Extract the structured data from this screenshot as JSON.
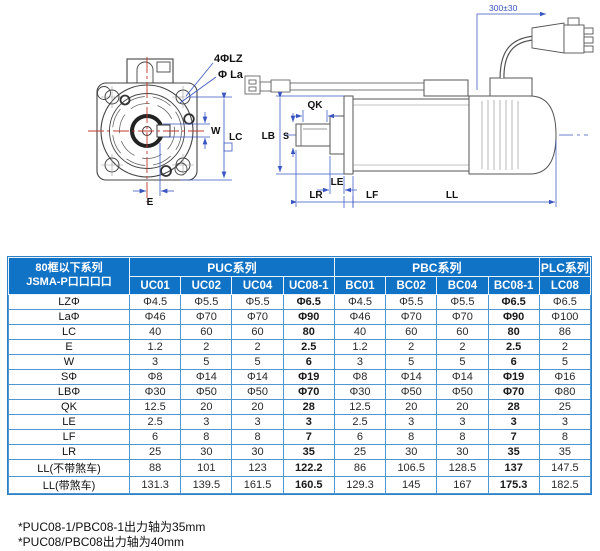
{
  "drawing": {
    "labels": {
      "lz": "4ΦLZ",
      "la": "Φ La",
      "w": "W",
      "lc": "LC",
      "e": "E",
      "cable": "300±30",
      "qk": "QK",
      "s": "S",
      "lb": "LB",
      "le": "LE",
      "lr": "LR",
      "lf": "LF",
      "ll": "LL"
    }
  },
  "table": {
    "corner_header_line1": "80框以下系列",
    "corner_header_line2": "JSMA-P口口口口",
    "groups": [
      {
        "label": "PUC系列"
      },
      {
        "label": "PBC系列"
      },
      {
        "label": "PLC系列"
      }
    ],
    "columns": [
      "UC01",
      "UC02",
      "UC04",
      "UC08-1",
      "BC01",
      "BC02",
      "BC04",
      "BC08-1",
      "LC08"
    ],
    "rows": [
      {
        "label": "LZΦ",
        "values": [
          "Φ4.5",
          "Φ5.5",
          "Φ5.5",
          "Φ6.5",
          "Φ4.5",
          "Φ5.5",
          "Φ5.5",
          "Φ6.5",
          "Φ6.5"
        ]
      },
      {
        "label": "LaΦ",
        "values": [
          "Φ46",
          "Φ70",
          "Φ70",
          "Φ90",
          "Φ46",
          "Φ70",
          "Φ70",
          "Φ90",
          "Φ100"
        ]
      },
      {
        "label": "LC",
        "values": [
          "40",
          "60",
          "60",
          "80",
          "40",
          "60",
          "60",
          "80",
          "86"
        ]
      },
      {
        "label": "E",
        "values": [
          "1.2",
          "2",
          "2",
          "2.5",
          "1.2",
          "2",
          "2",
          "2.5",
          "2"
        ]
      },
      {
        "label": "W",
        "values": [
          "3",
          "5",
          "5",
          "6",
          "3",
          "5",
          "5",
          "6",
          "5"
        ]
      },
      {
        "label": "SΦ",
        "values": [
          "Φ8",
          "Φ14",
          "Φ14",
          "Φ19",
          "Φ8",
          "Φ14",
          "Φ14",
          "Φ19",
          "Φ16"
        ]
      },
      {
        "label": "LBΦ",
        "values": [
          "Φ30",
          "Φ50",
          "Φ50",
          "Φ70",
          "Φ30",
          "Φ50",
          "Φ50",
          "Φ70",
          "Φ80"
        ]
      },
      {
        "label": "QK",
        "values": [
          "12.5",
          "20",
          "20",
          "28",
          "12.5",
          "20",
          "20",
          "28",
          "25"
        ]
      },
      {
        "label": "LE",
        "values": [
          "2.5",
          "3",
          "3",
          "3",
          "2.5",
          "3",
          "3",
          "3",
          "3"
        ]
      },
      {
        "label": "LF",
        "values": [
          "6",
          "8",
          "8",
          "7",
          "6",
          "8",
          "8",
          "7",
          "8"
        ]
      },
      {
        "label": "LR",
        "values": [
          "25",
          "30",
          "30",
          "35",
          "25",
          "30",
          "30",
          "35",
          "35"
        ]
      },
      {
        "label": "LL(不带煞车)",
        "values": [
          "88",
          "101",
          "123",
          "122.2",
          "86",
          "106.5",
          "128.5",
          "137",
          "147.5"
        ]
      },
      {
        "label": "LL(带煞车)",
        "values": [
          "131.3",
          "139.5",
          "161.5",
          "160.5",
          "129.3",
          "145",
          "167",
          "175.3",
          "182.5"
        ]
      }
    ]
  },
  "footnotes": {
    "line1": "*PUC08-1/PBC08-1出力轴为35mm",
    "line2": "*PUC08/PBC08出力轴为40mm"
  },
  "colors": {
    "header_bg": "#1173c6",
    "grid_line": "#4f96d5",
    "dimension_line": "#3a56c0",
    "centerline_red": "#c0392b"
  }
}
